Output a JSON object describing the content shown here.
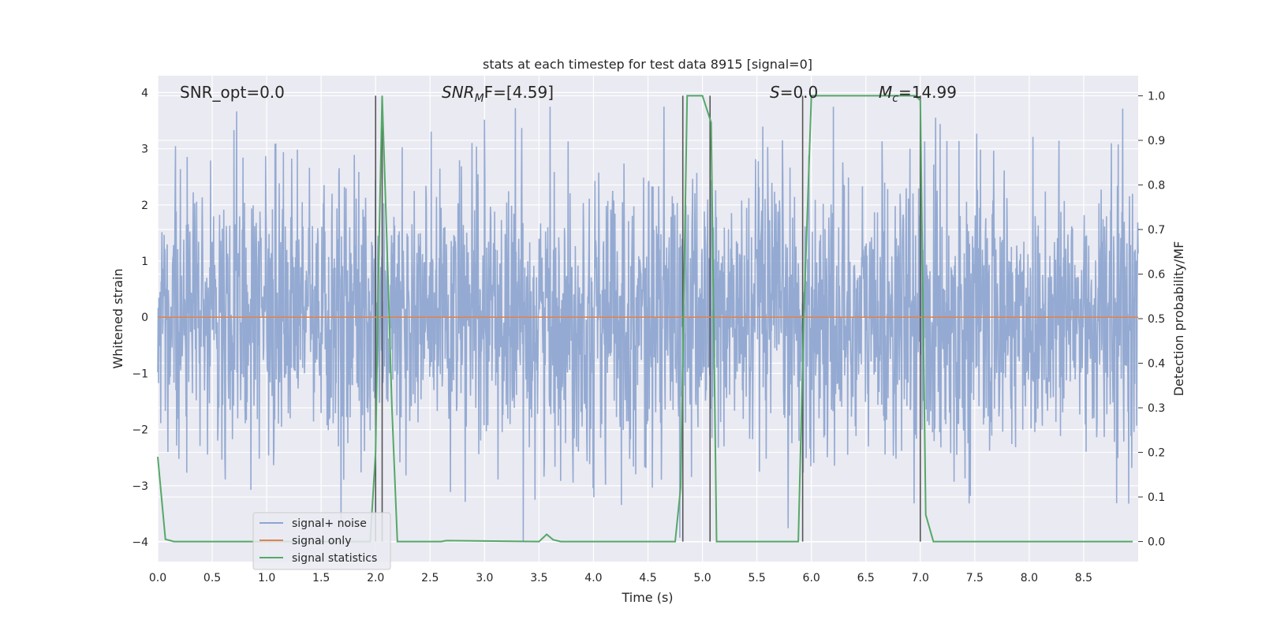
{
  "chart_data": {
    "type": "line",
    "title": "stats at each timestep for test data 8915 [signal=0]",
    "xlabel": "Time (s)",
    "ylabel_left": "Whitened strain",
    "ylabel_right": "Detection probability/MF",
    "xlim": [
      0,
      9
    ],
    "ylim_left": [
      -4.35,
      4.3
    ],
    "ylim_right": [
      -0.045,
      1.045
    ],
    "x_ticks": [
      "0.0",
      "0.5",
      "1.0",
      "1.5",
      "2.0",
      "2.5",
      "3.0",
      "3.5",
      "4.0",
      "4.5",
      "5.0",
      "5.5",
      "6.0",
      "6.5",
      "7.0",
      "7.5",
      "8.0",
      "8.5"
    ],
    "y_ticks_left": [
      "−4",
      "−3",
      "−2",
      "−1",
      "0",
      "1",
      "2",
      "3",
      "4"
    ],
    "y_ticks_right": [
      "0.0",
      "0.1",
      "0.2",
      "0.3",
      "0.4",
      "0.5",
      "0.6",
      "0.7",
      "0.8",
      "0.9",
      "1.0"
    ],
    "grid": true,
    "legend_position": "lower-left",
    "colors": {
      "noise": "#8fa6d0",
      "signal_only": "#dd8452",
      "statistics": "#55a868",
      "markers": "#555555",
      "axes_bg": "#eaeaf2",
      "grid": "#ffffff"
    },
    "annotations": {
      "snr_opt": "SNR_opt=0.0",
      "snr_mf_base": "SNR",
      "snr_mf_sub": "M",
      "snr_mf_tail": "F=[4.59]",
      "s_label_var": "S",
      "s_label_tail": "=0.0",
      "mc_var": "M",
      "mc_sub": "c",
      "mc_tail": "=14.99"
    },
    "series": [
      {
        "name": "signal+ noise",
        "kind": "noise",
        "note": "dense whitened-strain noise, roughly Gaussian with sigma≈1.2, spanning ~[-4, 3.8]"
      },
      {
        "name": "signal only",
        "kind": "flat",
        "x": [
          0,
          9
        ],
        "y": [
          0,
          0
        ]
      },
      {
        "name": "signal statistics",
        "axis": "right",
        "x": [
          0.0,
          0.07,
          0.15,
          1.95,
          2.0,
          2.03,
          2.06,
          2.1,
          2.15,
          2.2,
          2.6,
          2.65,
          3.5,
          3.57,
          3.63,
          3.7,
          4.75,
          4.8,
          4.86,
          4.93,
          5.0,
          5.08,
          5.13,
          5.2,
          5.88,
          5.93,
          6.0,
          6.05,
          6.95,
          7.0,
          7.05,
          7.12,
          7.2,
          8.95
        ],
        "y": [
          0.19,
          0.005,
          0.0,
          0.0,
          0.2,
          0.65,
          1.0,
          0.7,
          0.3,
          0.0,
          0.0,
          0.002,
          0.0,
          0.016,
          0.004,
          0.0,
          0.0,
          0.12,
          1.0,
          1.0,
          1.0,
          0.94,
          0.0,
          0.0,
          0.0,
          0.5,
          1.0,
          1.0,
          1.0,
          0.99,
          0.06,
          0.0,
          0.0,
          0.0
        ]
      }
    ],
    "vertical_markers_x": [
      2.0,
      2.06,
      4.82,
      5.07,
      5.92,
      7.0
    ],
    "legend": [
      {
        "label": "signal+ noise",
        "color": "#8fa6d0"
      },
      {
        "label": "signal only",
        "color": "#dd8452"
      },
      {
        "label": "signal statistics",
        "color": "#55a868"
      }
    ]
  }
}
